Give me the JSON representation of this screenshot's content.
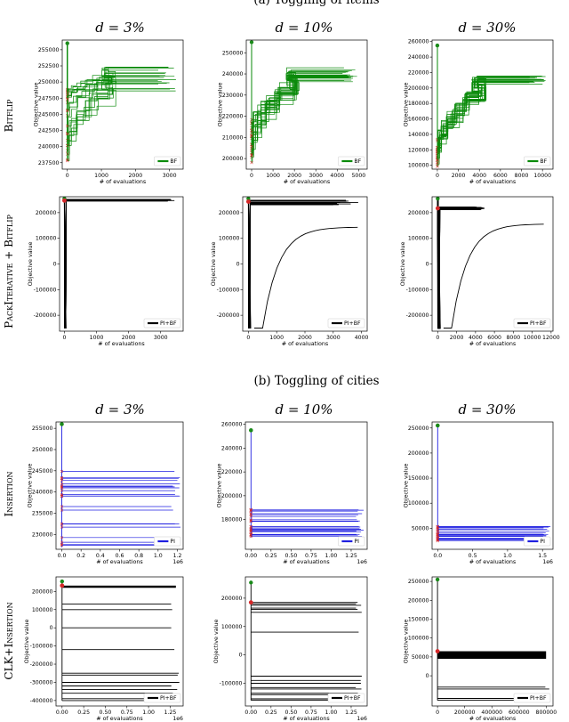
{
  "sections": {
    "a": "(a) Toggling of items",
    "b": "(b) Toggling of cities"
  },
  "column_titles_a": [
    "d = 3%",
    "d = 10%",
    "d = 30%"
  ],
  "column_titles_b": [
    "d = 3%",
    "d = 10%",
    "d = 30%"
  ],
  "row_labels": {
    "bitflip": "Bitflip",
    "pack": "PackIterative + Bitflip",
    "insertion": "Insertion",
    "clk": "CLK+Insertion"
  },
  "colors": {
    "green": "#0a8a0a",
    "black": "#000000",
    "blue": "#1f1fe0",
    "start": "#1a8a1a",
    "cross": "#d62728"
  },
  "chart_data": [
    {
      "id": "a-bf-3",
      "type": "line",
      "xlabel": "# of evaluations",
      "ylabel": "Objective value",
      "xlim": [
        -150,
        3400
      ],
      "ylim": [
        236500,
        256500
      ],
      "xticks": [
        0,
        1000,
        2000,
        3000
      ],
      "yticks": [
        237500,
        240000,
        242500,
        245000,
        247500,
        250000,
        252500,
        255000
      ],
      "legend": "BF",
      "color": "green",
      "start": 256000,
      "init_min": 237500,
      "init_max": 249000,
      "final_min": 248500,
      "final_max": 252500,
      "n_runs": 22
    },
    {
      "id": "a-bf-10",
      "type": "line",
      "xlabel": "# of evaluations",
      "ylabel": "Objective value",
      "xlim": [
        -250,
        5400
      ],
      "ylim": [
        195000,
        256000
      ],
      "xticks": [
        0,
        1000,
        2000,
        3000,
        4000,
        5000
      ],
      "yticks": [
        200000,
        210000,
        220000,
        230000,
        240000,
        250000
      ],
      "legend": "BF",
      "color": "green",
      "start": 255000,
      "init_min": 198000,
      "init_max": 220000,
      "final_min": 236000,
      "final_max": 243000,
      "n_runs": 22
    },
    {
      "id": "a-bf-30",
      "type": "line",
      "xlabel": "# of evaluations",
      "ylabel": "Objective value",
      "xlim": [
        -500,
        11000
      ],
      "ylim": [
        95000,
        262000
      ],
      "xticks": [
        0,
        2000,
        4000,
        6000,
        8000,
        10000
      ],
      "yticks": [
        100000,
        120000,
        140000,
        160000,
        180000,
        200000,
        220000,
        240000,
        260000
      ],
      "legend": "BF",
      "color": "green",
      "start": 255000,
      "init_min": 98000,
      "init_max": 135000,
      "final_min": 205000,
      "final_max": 216000,
      "n_runs": 22
    },
    {
      "id": "a-pi-3",
      "type": "line",
      "xlabel": "# of evaluations",
      "ylabel": "Objective value",
      "xlim": [
        -150,
        3700
      ],
      "ylim": [
        -262000,
        262000
      ],
      "xticks": [
        0,
        1000,
        2000,
        3000
      ],
      "yticks": [
        -200000,
        -100000,
        0,
        100000,
        200000
      ],
      "legend": "PI+BF",
      "color": "black",
      "start": 255000,
      "low": -250000,
      "plateau_min": 244000,
      "plateau_max": 252000
    },
    {
      "id": "a-pi-10",
      "type": "line",
      "xlabel": "# of evaluations",
      "ylabel": "Objective value",
      "xlim": [
        -200,
        4200
      ],
      "ylim": [
        -262000,
        262000
      ],
      "xticks": [
        0,
        1000,
        2000,
        3000,
        4000
      ],
      "yticks": [
        -200000,
        -100000,
        0,
        100000,
        200000
      ],
      "legend": "PI+BF",
      "color": "black",
      "start": 255000,
      "low": -250000,
      "plateau_min": 230000,
      "plateau_max": 248000,
      "slow_final": 143000
    },
    {
      "id": "a-pi-30",
      "type": "line",
      "xlabel": "# of evaluations",
      "ylabel": "Objective value",
      "xlim": [
        -600,
        12200
      ],
      "ylim": [
        -262000,
        262000
      ],
      "xticks": [
        0,
        2000,
        4000,
        6000,
        8000,
        10000,
        12000
      ],
      "yticks": [
        -200000,
        -100000,
        0,
        100000,
        200000
      ],
      "legend": "PI+BF",
      "color": "black",
      "start": 255000,
      "low": -250000,
      "plateau_min": 212000,
      "plateau_max": 222000,
      "slow_final": 155000
    },
    {
      "id": "b-pi-3",
      "type": "line",
      "xlabel": "# of evaluations",
      "ylabel": "Objective value",
      "exponent": "1e6",
      "xlim": [
        -0.06,
        1.26
      ],
      "ylim": [
        226500,
        256500
      ],
      "xticks": [
        0.0,
        0.2,
        0.4,
        0.6,
        0.8,
        1.0,
        1.2
      ],
      "yticks": [
        230000,
        235000,
        240000,
        245000,
        250000,
        255000
      ],
      "legend": "PI",
      "color": "blue",
      "start": 256000,
      "lines_min": 227000,
      "lines_max": 245000,
      "n_runs": 22
    },
    {
      "id": "b-pi-10",
      "type": "line",
      "xlabel": "# of evaluations",
      "ylabel": "Objective value",
      "exponent": "1e6",
      "xlim": [
        -0.07,
        1.45
      ],
      "ylim": [
        155000,
        262000
      ],
      "xticks": [
        0.0,
        0.25,
        0.5,
        0.75,
        1.0,
        1.25
      ],
      "yticks": [
        180000,
        200000,
        220000,
        240000,
        260000
      ],
      "legend": "PI",
      "color": "blue",
      "start": 255000,
      "lines_min": 165000,
      "lines_max": 190000,
      "n_runs": 22
    },
    {
      "id": "b-pi-30",
      "type": "line",
      "xlabel": "# of evaluations",
      "ylabel": "Objective value",
      "exponent": "1e6",
      "xlim": [
        -0.08,
        1.65
      ],
      "ylim": [
        8000,
        262000
      ],
      "xticks": [
        0.0,
        0.5,
        1.0,
        1.5
      ],
      "yticks": [
        50000,
        100000,
        150000,
        200000,
        250000
      ],
      "legend": "PI",
      "color": "blue",
      "start": 255000,
      "lines_min": 25000,
      "lines_max": 58000,
      "n_runs": 22
    },
    {
      "id": "b-clk-3",
      "type": "line",
      "xlabel": "# of evaluations",
      "ylabel": "Objective value",
      "exponent": "1e6",
      "xlim": [
        -0.07,
        1.4
      ],
      "ylim": [
        -430000,
        280000
      ],
      "xticks": [
        0.0,
        0.25,
        0.5,
        0.75,
        1.0,
        1.25
      ],
      "yticks": [
        -400000,
        -300000,
        -200000,
        -100000,
        0,
        100000,
        200000
      ],
      "legend": "PI+BF",
      "color": "black",
      "start": 255000,
      "band": [
        220000,
        232000
      ],
      "levels": [
        130000,
        100000,
        0,
        -120000,
        -250000,
        -260000,
        -300000,
        -320000,
        -340000,
        -360000,
        -390000,
        -400000
      ]
    },
    {
      "id": "b-clk-10",
      "type": "line",
      "xlabel": "# of evaluations",
      "ylabel": "Objective value",
      "exponent": "1e6",
      "xlim": [
        -0.07,
        1.45
      ],
      "ylim": [
        -180000,
        275000
      ],
      "xticks": [
        0.0,
        0.25,
        0.5,
        0.75,
        1.0,
        1.25
      ],
      "yticks": [
        -100000,
        0,
        100000,
        200000
      ],
      "legend": "PI+BF",
      "color": "black",
      "start": 255000,
      "levels": [
        185000,
        180000,
        175000,
        165000,
        160000,
        150000,
        80000,
        -75000,
        -90000,
        -100000,
        -115000,
        -120000,
        -135000,
        -140000,
        -155000,
        -160000
      ]
    },
    {
      "id": "b-clk-30",
      "type": "line",
      "xlabel": "# of evaluations",
      "ylabel": "Objective value",
      "xlim": [
        -40000,
        850000
      ],
      "ylim": [
        -80000,
        262000
      ],
      "xticks": [
        0,
        200000,
        400000,
        600000,
        800000
      ],
      "yticks": [
        0,
        50000,
        100000,
        150000,
        200000,
        250000
      ],
      "legend": "PI+BF",
      "color": "black",
      "start": 255000,
      "band": [
        45000,
        65000
      ],
      "levels": [
        -30000,
        -35000,
        -60000,
        -65000
      ]
    }
  ]
}
